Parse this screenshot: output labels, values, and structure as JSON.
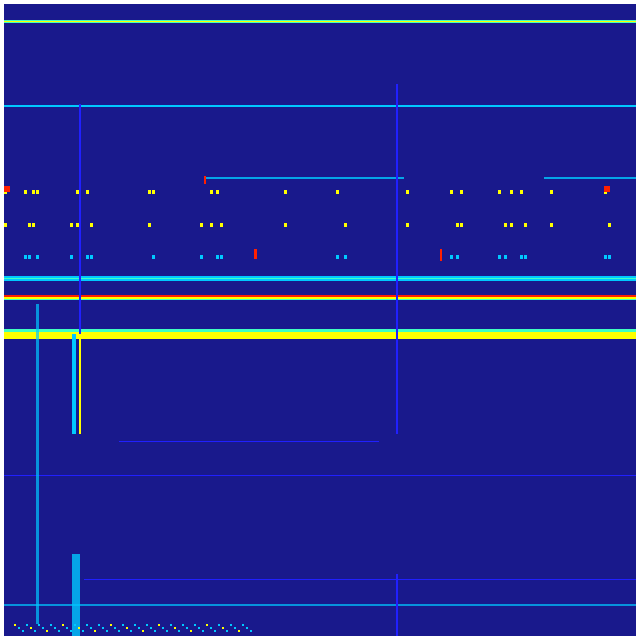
{
  "image": {
    "kind": "heatmap-matrix",
    "colormap": "jet",
    "colors": {
      "background": "#19198c",
      "low": "#2020ff",
      "mid_low": "#00c8ff",
      "mid": "#40ffc0",
      "mid_high": "#ffff00",
      "high": "#ff2000",
      "border": "#ffffff"
    }
  }
}
